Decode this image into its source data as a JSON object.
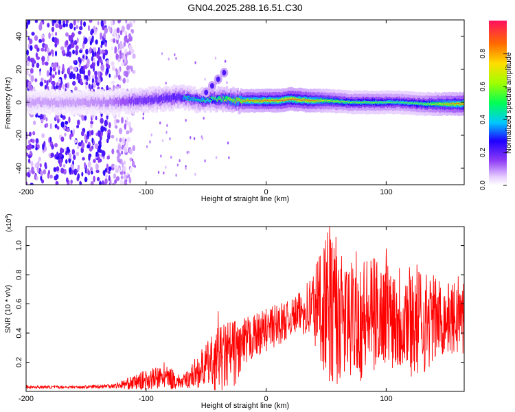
{
  "chart_data": [
    {
      "type": "heatmap",
      "title": "GN04.2025.288.16.51.C30",
      "xlabel": "Height of straight line (km)",
      "ylabel": "Frequency (Hz)",
      "xlim": [
        -200,
        165
      ],
      "ylim": [
        -50,
        50
      ],
      "xticks": [
        -200,
        -100,
        0,
        100
      ],
      "yticks": [
        -40,
        -20,
        0,
        20,
        40
      ],
      "colorbar": {
        "label": "Normalized spectral amplitude",
        "range": [
          0,
          1
        ],
        "ticks": [
          "0.0",
          "0.2",
          "0.4",
          "0.6",
          "0.8"
        ]
      },
      "ridge": {
        "x": [
          -200,
          -160,
          -130,
          -110,
          -90,
          -70,
          -55,
          -45,
          -35,
          -25,
          -15,
          0,
          10,
          20,
          35,
          50,
          70,
          90,
          110,
          130,
          150,
          165
        ],
        "y": [
          0,
          0,
          0,
          1,
          2,
          3,
          1,
          2,
          2,
          1,
          1,
          1,
          1,
          2,
          1,
          1,
          0,
          0,
          0,
          -1,
          -1,
          -1
        ],
        "peak_amplitude": [
          0.2,
          0.2,
          0.25,
          0.4,
          0.45,
          0.5,
          0.5,
          0.6,
          0.7,
          0.8,
          0.85,
          0.9,
          0.9,
          0.95,
          0.9,
          0.7,
          0.6,
          0.6,
          0.55,
          0.6,
          0.8,
          0.9
        ]
      },
      "branch": {
        "x": [
          -50,
          -45,
          -40,
          -35
        ],
        "y": [
          6,
          10,
          14,
          18
        ]
      },
      "noise_region": {
        "x_min": -200,
        "x_max": -120
      }
    },
    {
      "type": "line",
      "xlabel": "Height of straight line (km)",
      "ylabel": "SNR (10 * v/v)",
      "scale_label": "(x10",
      "scale_exponent": "4",
      "scale_suffix": ")",
      "xlim": [
        -200,
        165
      ],
      "ylim": [
        0,
        1.13
      ],
      "xticks": [
        -200,
        -100,
        0,
        100
      ],
      "yticks": [
        "0.2",
        "0.4",
        "0.6",
        "0.8",
        "1.0"
      ],
      "color": "#ff0000",
      "envelope_x": [
        -200,
        -150,
        -125,
        -110,
        -100,
        -90,
        -80,
        -70,
        -60,
        -50,
        -40,
        -30,
        -20,
        -10,
        0,
        10,
        20,
        30,
        40,
        50,
        55,
        60,
        70,
        80,
        90,
        100,
        110,
        120,
        130,
        140,
        150,
        160,
        165
      ],
      "envelope_base": [
        0.03,
        0.03,
        0.04,
        0.06,
        0.08,
        0.09,
        0.09,
        0.06,
        0.12,
        0.18,
        0.22,
        0.25,
        0.3,
        0.38,
        0.42,
        0.46,
        0.5,
        0.55,
        0.58,
        0.6,
        0.55,
        0.5,
        0.48,
        0.5,
        0.52,
        0.55,
        0.52,
        0.5,
        0.48,
        0.5,
        0.5,
        0.5,
        0.5
      ],
      "envelope_amp": [
        0.01,
        0.01,
        0.02,
        0.05,
        0.07,
        0.08,
        0.08,
        0.04,
        0.1,
        0.15,
        0.22,
        0.25,
        0.2,
        0.15,
        0.15,
        0.15,
        0.12,
        0.15,
        0.3,
        0.5,
        0.55,
        0.45,
        0.4,
        0.45,
        0.4,
        0.35,
        0.4,
        0.4,
        0.38,
        0.3,
        0.25,
        0.25,
        0.3
      ],
      "peaks": [
        {
          "x": 53,
          "y": 1.13
        },
        {
          "x": 58,
          "y": 1.06
        },
        {
          "x": 45,
          "y": 0.93
        },
        {
          "x": 75,
          "y": 0.96
        },
        {
          "x": 100,
          "y": 0.98
        },
        {
          "x": 160,
          "y": 0.79
        },
        {
          "x": -40,
          "y": 0.55
        },
        {
          "x": -85,
          "y": 0.2
        }
      ]
    }
  ]
}
